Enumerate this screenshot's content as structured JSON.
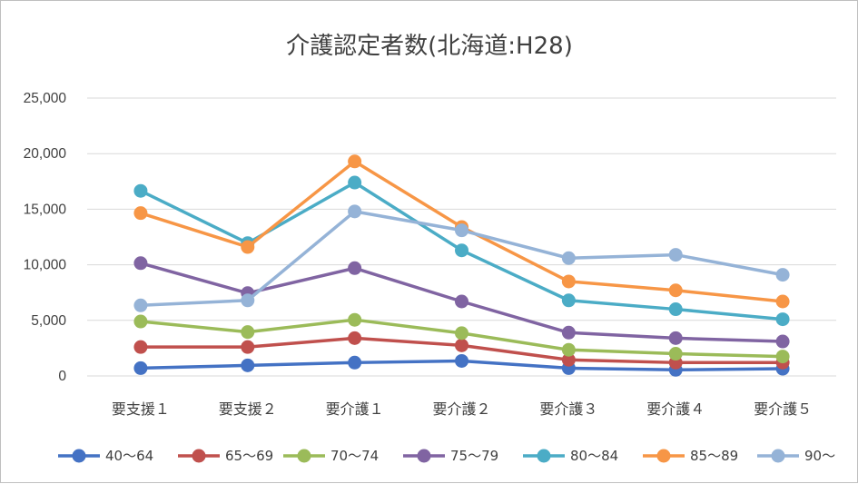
{
  "chart_data": {
    "type": "line",
    "title": "介護認定者数(北海道:H28)",
    "categories": [
      "要支援１",
      "要支援２",
      "要介護１",
      "要介護２",
      "要介護３",
      "要介護４",
      "要介護５"
    ],
    "ylim": [
      0,
      25000
    ],
    "yticks": [
      0,
      5000,
      10000,
      15000,
      20000,
      25000
    ],
    "ytick_labels": [
      "0",
      "5,000",
      "10,000",
      "15,000",
      "20,000",
      "25,000"
    ],
    "grid": true,
    "legend_position": "bottom",
    "series": [
      {
        "name": "40〜64",
        "color": "#4472c4",
        "values": [
          700,
          950,
          1200,
          1350,
          700,
          550,
          650
        ]
      },
      {
        "name": "65〜69",
        "color": "#c0504d",
        "values": [
          2600,
          2600,
          3400,
          2750,
          1450,
          1200,
          1200
        ]
      },
      {
        "name": "70〜74",
        "color": "#9bbb59",
        "values": [
          4900,
          3950,
          5050,
          3850,
          2350,
          2000,
          1750
        ]
      },
      {
        "name": "75〜79",
        "color": "#8064a2",
        "values": [
          10150,
          7450,
          9700,
          6700,
          3900,
          3400,
          3100
        ]
      },
      {
        "name": "80〜84",
        "color": "#4bacc6",
        "values": [
          16650,
          11950,
          17400,
          11300,
          6800,
          6000,
          5100
        ]
      },
      {
        "name": "85〜89",
        "color": "#f79646",
        "values": [
          14650,
          11600,
          19300,
          13400,
          8500,
          7700,
          6700
        ]
      },
      {
        "name": "90〜",
        "color": "#95b3d7",
        "values": [
          6350,
          6800,
          14800,
          13100,
          10600,
          10900,
          9100
        ]
      }
    ]
  }
}
